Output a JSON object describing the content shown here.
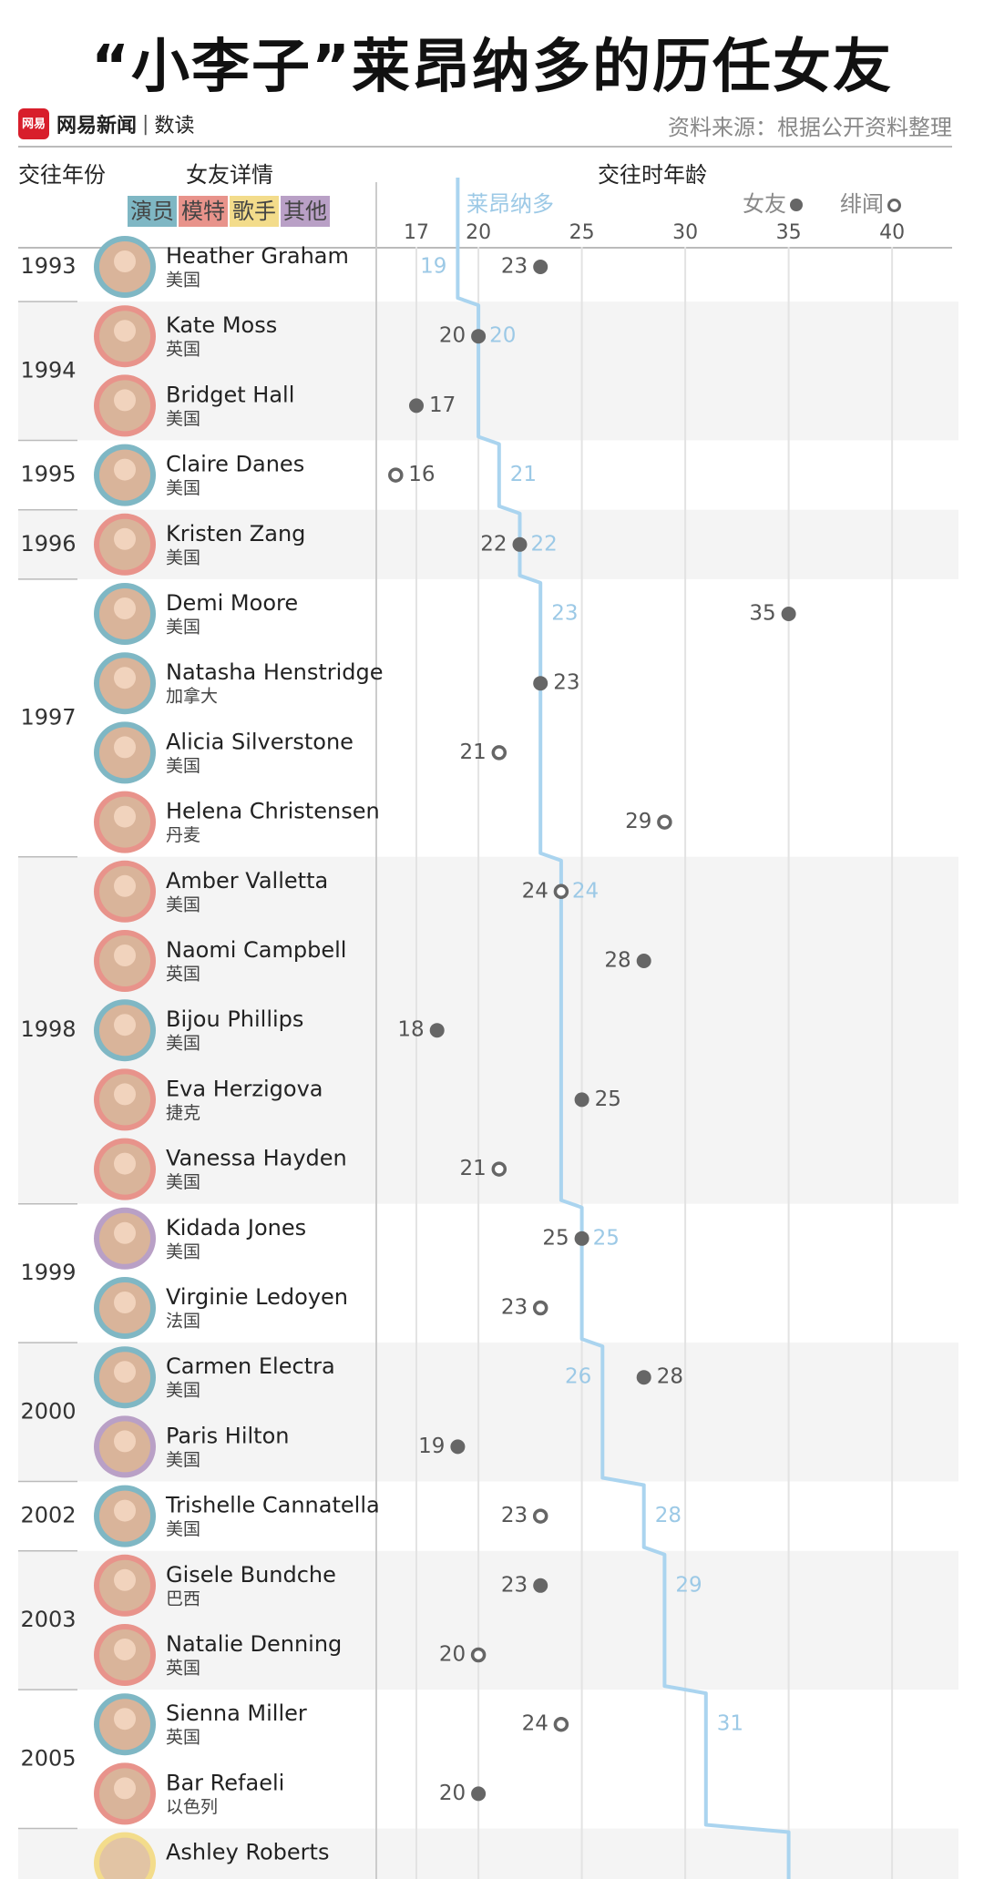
{
  "title": "“小李子”莱昂纳多的历任女友",
  "brand": {
    "logo_text": "网易",
    "name": "网易新闻",
    "sub": "数读"
  },
  "source": "资料来源：根据公开资料整理",
  "headers": {
    "year": "交往年份",
    "details": "女友详情",
    "age": "交往时年龄"
  },
  "categories": [
    {
      "label": "演员",
      "color": "#7fb7c4"
    },
    {
      "label": "模特",
      "color": "#e8938b"
    },
    {
      "label": "歌手",
      "color": "#f3dc8b"
    },
    {
      "label": "其他",
      "color": "#b9a0c6"
    }
  ],
  "legend": {
    "leo": "莱昂纳多",
    "girlfriend": "女友",
    "rumor": "绯闻"
  },
  "colors": {
    "leo_line": "#aad4ef",
    "marker": "#666666",
    "band": "#f4f4f4",
    "grid": "#e3e3e3"
  },
  "chart_data": {
    "type": "scatter",
    "x_ticks": [
      17,
      20,
      25,
      30,
      35,
      40
    ],
    "xlim": [
      16,
      41
    ],
    "leo_ages": [
      19,
      20,
      21,
      22,
      23,
      24,
      25,
      26,
      28,
      29,
      31
    ],
    "year_groups": [
      {
        "year": "1993",
        "rows": 1
      },
      {
        "year": "1994",
        "rows": 2
      },
      {
        "year": "1995",
        "rows": 1
      },
      {
        "year": "1996",
        "rows": 1
      },
      {
        "year": "1997",
        "rows": 4
      },
      {
        "year": "1998",
        "rows": 5
      },
      {
        "year": "1999",
        "rows": 2
      },
      {
        "year": "2000",
        "rows": 2
      },
      {
        "year": "2002",
        "rows": 1
      },
      {
        "year": "2003",
        "rows": 2
      },
      {
        "year": "2005",
        "rows": 2
      }
    ],
    "rows": [
      {
        "name": "Heather Graham",
        "country": "美国",
        "age": 23,
        "type": "girlfriend",
        "leo_age": 19,
        "category": "演员"
      },
      {
        "name": "Kate Moss",
        "country": "英国",
        "age": 20,
        "type": "girlfriend",
        "leo_age": 20,
        "category": "模特"
      },
      {
        "name": "Bridget Hall",
        "country": "美国",
        "age": 17,
        "type": "girlfriend",
        "leo_age": 20,
        "category": "模特"
      },
      {
        "name": "Claire Danes",
        "country": "美国",
        "age": 16,
        "type": "rumor",
        "leo_age": 21,
        "category": "演员"
      },
      {
        "name": "Kristen Zang",
        "country": "美国",
        "age": 22,
        "type": "girlfriend",
        "leo_age": 22,
        "category": "模特"
      },
      {
        "name": "Demi Moore",
        "country": "美国",
        "age": 35,
        "type": "girlfriend",
        "leo_age": 23,
        "category": "演员"
      },
      {
        "name": "Natasha Henstridge",
        "country": "加拿大",
        "age": 23,
        "type": "girlfriend",
        "leo_age": 23,
        "category": "演员"
      },
      {
        "name": "Alicia Silverstone",
        "country": "美国",
        "age": 21,
        "type": "rumor",
        "leo_age": 23,
        "category": "演员"
      },
      {
        "name": "Helena Christensen",
        "country": "丹麦",
        "age": 29,
        "type": "rumor",
        "leo_age": 23,
        "category": "模特"
      },
      {
        "name": "Amber Valletta",
        "country": "美国",
        "age": 24,
        "type": "rumor",
        "leo_age": 24,
        "category": "模特"
      },
      {
        "name": "Naomi Campbell",
        "country": "英国",
        "age": 28,
        "type": "girlfriend",
        "leo_age": 24,
        "category": "模特"
      },
      {
        "name": "Bijou Phillips",
        "country": "美国",
        "age": 18,
        "type": "girlfriend",
        "leo_age": 24,
        "category": "演员"
      },
      {
        "name": "Eva Herzigova",
        "country": "捷克",
        "age": 25,
        "type": "girlfriend",
        "leo_age": 24,
        "category": "模特"
      },
      {
        "name": "Vanessa Hayden",
        "country": "美国",
        "age": 21,
        "type": "rumor",
        "leo_age": 24,
        "category": "模特"
      },
      {
        "name": "Kidada Jones",
        "country": "美国",
        "age": 25,
        "type": "girlfriend",
        "leo_age": 25,
        "category": "其他"
      },
      {
        "name": "Virginie Ledoyen",
        "country": "法国",
        "age": 23,
        "type": "rumor",
        "leo_age": 25,
        "category": "演员"
      },
      {
        "name": "Carmen Electra",
        "country": "美国",
        "age": 28,
        "type": "girlfriend",
        "leo_age": 26,
        "category": "演员"
      },
      {
        "name": "Paris Hilton",
        "country": "美国",
        "age": 19,
        "type": "girlfriend",
        "leo_age": 26,
        "category": "其他"
      },
      {
        "name": "Trishelle Cannatella",
        "country": "美国",
        "age": 23,
        "type": "rumor",
        "leo_age": 28,
        "category": "演员"
      },
      {
        "name": "Gisele Bundche",
        "country": "巴西",
        "age": 23,
        "type": "girlfriend",
        "leo_age": 29,
        "category": "模特"
      },
      {
        "name": "Natalie Denning",
        "country": "英国",
        "age": 20,
        "type": "rumor",
        "leo_age": 29,
        "category": "模特"
      },
      {
        "name": "Sienna Miller",
        "country": "英国",
        "age": 24,
        "type": "rumor",
        "leo_age": 31,
        "category": "演员"
      },
      {
        "name": "Bar Refaeli",
        "country": "以色列",
        "age": 20,
        "type": "girlfriend",
        "leo_age": 31,
        "category": "模特"
      }
    ],
    "leo_labels": [
      {
        "row": 0,
        "age": 19,
        "side": "left"
      },
      {
        "row": 1,
        "age": 20,
        "side": "right"
      },
      {
        "row": 3,
        "age": 21,
        "side": "right"
      },
      {
        "row": 4,
        "age": 22,
        "side": "right"
      },
      {
        "row": 5,
        "age": 23,
        "side": "right"
      },
      {
        "row": 9,
        "age": 24,
        "side": "right"
      },
      {
        "row": 14,
        "age": 25,
        "side": "right"
      },
      {
        "row": 16,
        "age": 26,
        "side": "left"
      },
      {
        "row": 18,
        "age": 28,
        "side": "right"
      },
      {
        "row": 19,
        "age": 29,
        "side": "right"
      },
      {
        "row": 21,
        "age": 31,
        "side": "right"
      }
    ],
    "partial_row": {
      "name": "Ashley Roberts",
      "category": "歌手"
    }
  }
}
